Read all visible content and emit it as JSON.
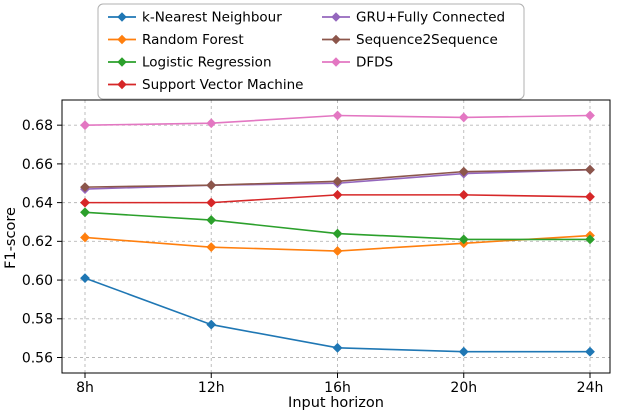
{
  "chart_data": {
    "type": "line",
    "x": [
      "8h",
      "12h",
      "16h",
      "20h",
      "24h"
    ],
    "xlabel": "Input horizon",
    "ylabel": "F1-score",
    "ylim": [
      0.552,
      0.693
    ],
    "yticks": [
      0.56,
      0.58,
      0.6,
      0.62,
      0.64,
      0.66,
      0.68
    ],
    "grid": true,
    "grid_style": "dashed",
    "legend_position": "top",
    "legend_columns": 2,
    "marker": "diamond",
    "series": [
      {
        "name": "k-Nearest Neighbour",
        "color": "#1f77b4",
        "values": [
          0.601,
          0.577,
          0.565,
          0.563,
          0.563
        ]
      },
      {
        "name": "Random Forest",
        "color": "#ff7f0e",
        "values": [
          0.622,
          0.617,
          0.615,
          0.619,
          0.623
        ]
      },
      {
        "name": "Logistic Regression",
        "color": "#2ca02c",
        "values": [
          0.635,
          0.631,
          0.624,
          0.621,
          0.621
        ]
      },
      {
        "name": "Support Vector Machine",
        "color": "#d62728",
        "values": [
          0.64,
          0.64,
          0.644,
          0.644,
          0.643
        ]
      },
      {
        "name": "GRU+Fully Connected",
        "color": "#9467bd",
        "values": [
          0.647,
          0.649,
          0.65,
          0.655,
          0.657
        ]
      },
      {
        "name": "Sequence2Sequence",
        "color": "#8c564b",
        "values": [
          0.648,
          0.649,
          0.651,
          0.656,
          0.657
        ]
      },
      {
        "name": "DFDS",
        "color": "#e377c2",
        "values": [
          0.68,
          0.681,
          0.685,
          0.684,
          0.685
        ]
      }
    ]
  }
}
